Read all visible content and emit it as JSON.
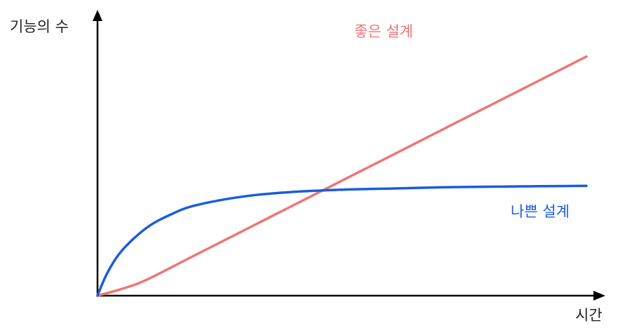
{
  "chart_data": {
    "type": "line",
    "title": "",
    "xlabel": "시간",
    "ylabel": "기능의 수",
    "grid": false,
    "legend": "inline labels at line ends",
    "series": [
      {
        "name": "좋은 설계",
        "color": "#f07575",
        "x": [
          0,
          0.05,
          0.1,
          0.2,
          0.4,
          0.6,
          0.8,
          1.0
        ],
        "y": [
          0,
          0.03,
          0.07,
          0.18,
          0.4,
          0.62,
          0.84,
          1.06
        ]
      },
      {
        "name": "나쁜 설계",
        "color": "#1a5ce0",
        "x": [
          0,
          0.02,
          0.05,
          0.1,
          0.15,
          0.2,
          0.3,
          0.4,
          0.5,
          0.6,
          0.7,
          0.8,
          0.9,
          1.0
        ],
        "y": [
          0,
          0.1,
          0.2,
          0.3,
          0.36,
          0.4,
          0.44,
          0.46,
          0.47,
          0.475,
          0.48,
          0.483,
          0.485,
          0.487
        ]
      }
    ]
  }
}
